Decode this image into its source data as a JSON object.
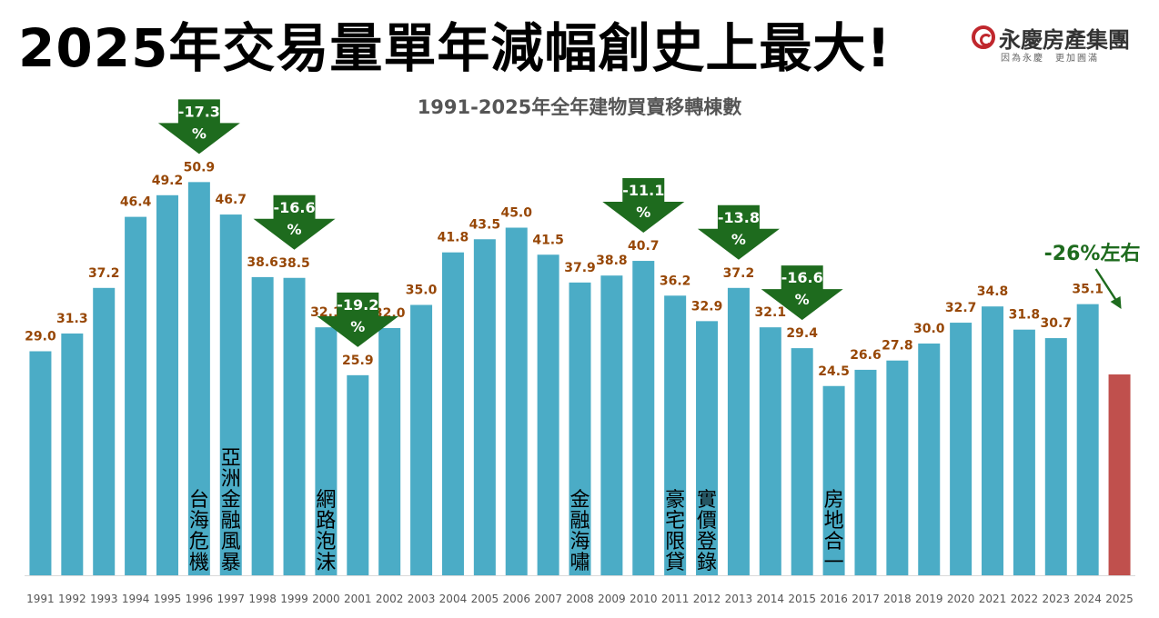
{
  "header": {
    "title": "2025年交易量單年減幅創史上最大!",
    "logo_name": "永慶房產集團",
    "logo_slogan": "因為永慶　更加圓滿"
  },
  "colors": {
    "bar": "#4bacc6",
    "highlight_bar": "#c0504d",
    "value_label": "#974706",
    "arrow": "#1e6b1e",
    "logo": "#c0272d"
  },
  "chart_data": {
    "type": "bar",
    "title": "1991-2025年全年建物買賣移轉棟數",
    "categories": [
      "1991",
      "1992",
      "1993",
      "1994",
      "1995",
      "1996",
      "1997",
      "1998",
      "1999",
      "2000",
      "2001",
      "2002",
      "2003",
      "2004",
      "2005",
      "2006",
      "2007",
      "2008",
      "2009",
      "2010",
      "2011",
      "2012",
      "2013",
      "2014",
      "2015",
      "2016",
      "2017",
      "2018",
      "2019",
      "2020",
      "2021",
      "2022",
      "2023",
      "2024",
      "2025"
    ],
    "values": [
      29.0,
      31.3,
      37.2,
      46.4,
      49.2,
      50.9,
      46.7,
      38.6,
      38.5,
      32.1,
      25.9,
      32.0,
      35.0,
      41.8,
      43.5,
      45.0,
      41.5,
      37.9,
      38.8,
      40.7,
      36.2,
      32.9,
      37.2,
      32.1,
      29.4,
      24.5,
      26.6,
      27.8,
      30.0,
      32.7,
      34.8,
      31.8,
      30.7,
      35.1,
      26.0
    ],
    "value_labels": [
      "29.0",
      "31.3",
      "37.2",
      "46.4",
      "49.2",
      "50.9",
      "46.7",
      "38.6",
      "38.5",
      "32.1",
      "25.9",
      "32.0",
      "35.0",
      "41.8",
      "43.5",
      "45.0",
      "41.5",
      "37.9",
      "38.8",
      "40.7",
      "36.2",
      "32.9",
      "37.2",
      "32.1",
      "29.4",
      "24.5",
      "26.6",
      "27.8",
      "30.0",
      "32.7",
      "34.8",
      "31.8",
      "30.7",
      "35.1",
      ""
    ],
    "highlight_category": "2025",
    "xlabel": "",
    "ylabel": "",
    "ylim": [
      0,
      55
    ],
    "grid": false,
    "legend": "none",
    "events": [
      {
        "category": "1996",
        "text": "台海危機"
      },
      {
        "category": "1997",
        "text": "亞洲金融風暴"
      },
      {
        "category": "2000",
        "text": "網路泡沫"
      },
      {
        "category": "2008",
        "text": "金融海嘯"
      },
      {
        "category": "2011",
        "text": "豪宅限貸"
      },
      {
        "category": "2012",
        "text": "實價登錄"
      },
      {
        "category": "2016",
        "text": "房地合一"
      }
    ],
    "decline_arrows": [
      {
        "category": "1996",
        "label": "-17.3%"
      },
      {
        "category": "1999",
        "label": "-16.6%"
      },
      {
        "category": "2001",
        "label": "-19.2%"
      },
      {
        "category": "2010",
        "label": "-11.1%"
      },
      {
        "category": "2013",
        "label": "-13.8%"
      },
      {
        "category": "2015",
        "label": "-16.6%"
      }
    ],
    "annotation": {
      "category": "2025",
      "text": "-26%左右"
    }
  }
}
